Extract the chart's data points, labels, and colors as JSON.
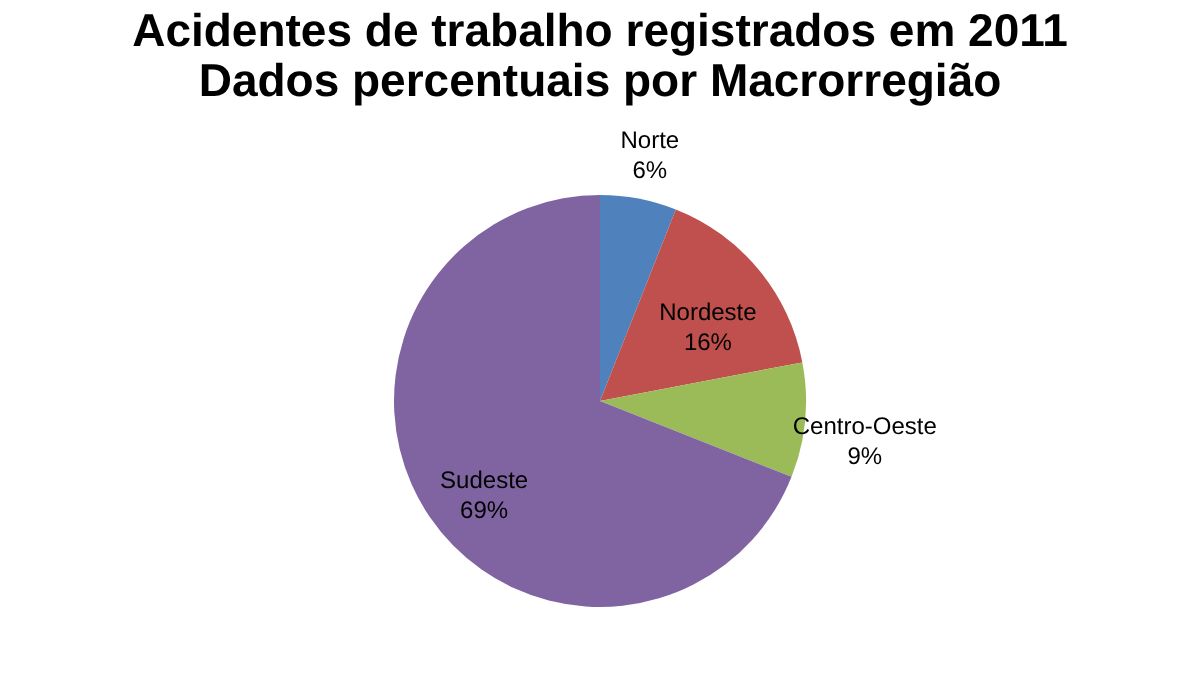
{
  "chart_data": {
    "type": "pie",
    "title": "Acidentes de trabalho registrados em 2011\nDados percentuais por Macrorregião",
    "categories": [
      "Norte",
      "Nordeste",
      "Centro-Oeste",
      "Sudeste"
    ],
    "values": [
      6,
      16,
      9,
      69
    ],
    "colors": [
      "#4f81bd",
      "#c0504d",
      "#9bbb59",
      "#8064a2"
    ],
    "value_labels": [
      "6%",
      "16%",
      "9%",
      "69%"
    ],
    "legend": false
  }
}
